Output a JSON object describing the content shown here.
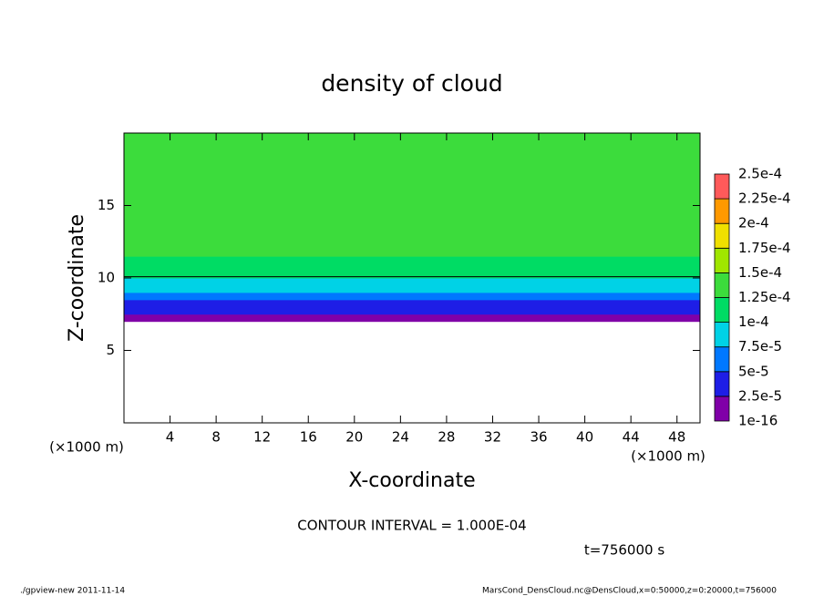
{
  "chart_data": {
    "type": "contour",
    "title": "density of cloud",
    "x_label": "X-coordinate",
    "y_label": "Z-coordinate",
    "x_unit": "(×1000 m)",
    "y_unit": "(×1000 m)",
    "xlim": [
      0,
      50
    ],
    "ylim": [
      0,
      20
    ],
    "xticks": [
      4,
      8,
      12,
      16,
      20,
      24,
      28,
      32,
      36,
      40,
      44,
      48
    ],
    "yticks": [
      5,
      10,
      15
    ],
    "z": [
      7.25,
      7.75,
      8.25,
      8.75,
      9.25,
      9.75,
      10.25,
      10.75,
      11.25,
      11.75,
      12.25,
      12.75,
      13.25,
      13.75,
      14.25,
      14.75,
      15.25,
      15.75,
      16.25,
      16.75,
      17.25,
      17.75,
      18.25,
      18.75,
      19.25,
      19.75
    ],
    "values": [
      1e-05,
      3e-05,
      4e-05,
      6e-05,
      8e-05,
      9e-05,
      0.000105,
      0.000115,
      0.00012,
      0.00013,
      0.000135,
      0.00014,
      0.00014,
      0.000145,
      0.000145,
      0.000148,
      0.000145,
      0.00014,
      0.00014,
      0.000135,
      0.00013,
      0.00013,
      0.00013,
      0.000128,
      0.000128,
      0.000127
    ],
    "levels": [
      1e-16,
      {
        "value": 2.5e-05,
        "label": "2.5e-5"
      },
      {
        "value": 5e-05,
        "label": "5e-5"
      },
      {
        "value": 7.5e-05,
        "label": "7.5e-5"
      },
      {
        "value": 0.0001,
        "label": "1e-4"
      },
      {
        "value": 0.000125,
        "label": "1.25e-4"
      },
      {
        "value": 0.00015,
        "label": "1.5e-4"
      },
      {
        "value": 0.000175,
        "label": "1.75e-4"
      },
      {
        "value": 0.0002,
        "label": "2e-4"
      },
      {
        "value": 0.000225,
        "label": "2.25e-4"
      },
      {
        "value": 0.00025,
        "label": "2.5e-4"
      }
    ],
    "colors": [
      "#8000a8",
      "#1e1ee6",
      "#0078ff",
      "#00d2e6",
      "#00dc64",
      "#3cdc3c",
      "#a0e600",
      "#f0e000",
      "#ff9900",
      "#ff5a5a"
    ],
    "contour_interval": "CONTOUR INTERVAL = 1.000E-04",
    "time_label": "t=756000 s",
    "footer_left": "./gpview-new   2011-11-14",
    "footer_right": "MarsCond_DensCloud.nc@DensCloud,x=0:50000,z=0:20000,t=756000"
  }
}
